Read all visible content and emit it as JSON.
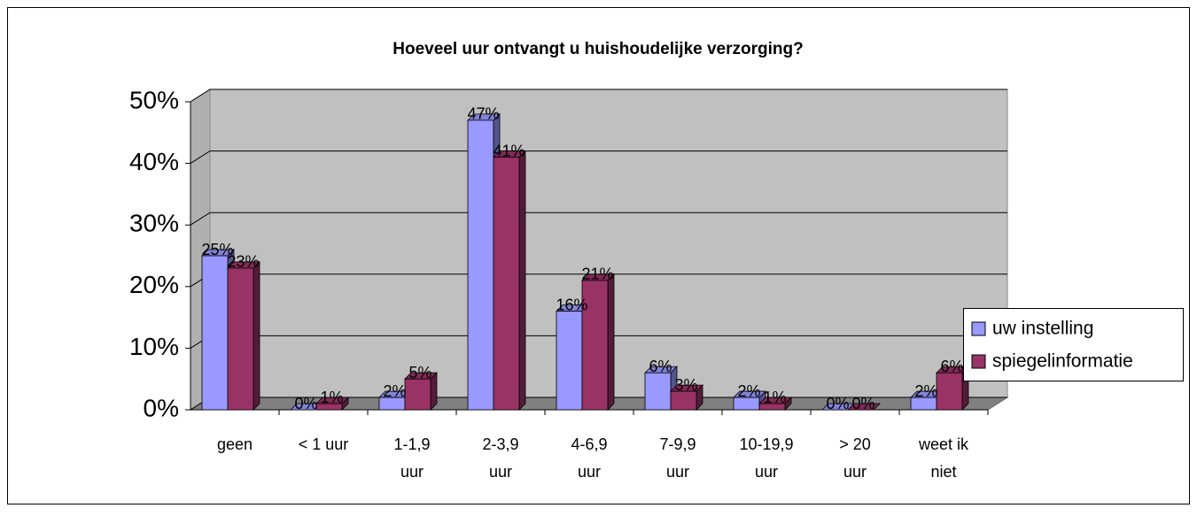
{
  "chart_data": {
    "type": "bar3d",
    "title": "Hoeveel uur ontvangt u huishoudelijke verzorging?",
    "categories": [
      [
        "geen"
      ],
      [
        "< 1 uur"
      ],
      [
        "1-1,9",
        "uur"
      ],
      [
        "2-3,9",
        "uur"
      ],
      [
        "4-6,9",
        "uur"
      ],
      [
        "7-9,9",
        "uur"
      ],
      [
        "10-19,9",
        "uur"
      ],
      [
        "> 20",
        "uur"
      ],
      [
        "weet ik",
        "niet"
      ]
    ],
    "series": [
      {
        "name": "uw instelling",
        "color": "#9999ff",
        "values": [
          25,
          0,
          2,
          47,
          16,
          6,
          2,
          0,
          2
        ],
        "value_labels": [
          "25%",
          "0%",
          "2%",
          "47%",
          "16%",
          "6%",
          "2%",
          "0%",
          "2%"
        ]
      },
      {
        "name": "spiegelinformatie",
        "color": "#993366",
        "values": [
          23,
          1,
          5,
          41,
          21,
          3,
          1,
          0,
          6
        ],
        "value_labels": [
          "23%",
          "1%",
          "5%",
          "41%",
          "21%",
          "3%",
          "1%",
          "0%",
          "6%"
        ]
      }
    ],
    "ylim": [
      0,
      50
    ],
    "yticks": [
      {
        "value": 0,
        "label": "0%"
      },
      {
        "value": 10,
        "label": "10%"
      },
      {
        "value": 20,
        "label": "20%"
      },
      {
        "value": 30,
        "label": "30%"
      },
      {
        "value": 40,
        "label": "40%"
      },
      {
        "value": 50,
        "label": "50%"
      }
    ],
    "grid": true,
    "legend": "right"
  }
}
